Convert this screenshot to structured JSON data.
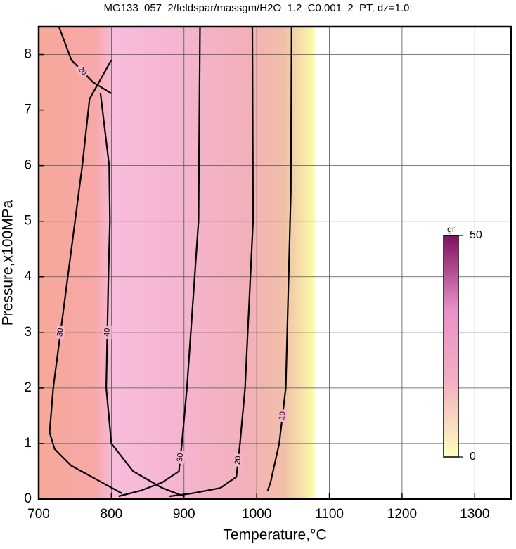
{
  "chart_data": {
    "type": "contour",
    "title": "MG133_057_2/feldspar/massgm/H2O_1.2_C0.001_2_PT, dz=1.0:",
    "x_label": "Temperature,°C",
    "y_label": "Pressure,x100MPa",
    "xlim": [
      700,
      1350
    ],
    "ylim": [
      0,
      8.5
    ],
    "xticks": [
      700,
      800,
      900,
      1000,
      1100,
      1200,
      1300
    ],
    "yticks": [
      0,
      1,
      2,
      3,
      4,
      5,
      6,
      7,
      8
    ],
    "grid": true,
    "contours": [
      {
        "level": 10,
        "x": [
          1048,
          1047,
          1040,
          1031,
          1019,
          1015
        ],
        "y": [
          8.5,
          5.5,
          2,
          1,
          0.3,
          0.15
        ]
      },
      {
        "level": 20,
        "x": [
          994,
          995,
          984,
          977,
          972,
          950,
          910,
          880
        ],
        "y": [
          8.5,
          5,
          2,
          1,
          0.4,
          0.2,
          0.1,
          0.05
        ]
      },
      {
        "level": 30,
        "x": [
          922,
          920,
          904,
          897,
          893,
          870,
          840,
          810
        ],
        "y": [
          8.5,
          5,
          2,
          1,
          0.5,
          0.3,
          0.15,
          0.05
        ]
      },
      {
        "level": 40,
        "x": [
          785,
          797,
          798,
          796,
          793,
          800,
          830,
          870,
          900
        ],
        "y": [
          7.3,
          6,
          5,
          4,
          2,
          1,
          0.5,
          0.2,
          0.05
        ]
      },
      {
        "level": 30,
        "x": [
          800,
          770,
          760,
          740,
          720,
          715,
          722,
          745,
          780,
          815
        ],
        "y": [
          7.9,
          7.2,
          6,
          4,
          2,
          1.2,
          0.9,
          0.6,
          0.35,
          0.1
        ]
      },
      {
        "level": 20,
        "x": [
          728,
          745,
          775,
          800
        ],
        "y": [
          8.5,
          7.9,
          7.5,
          7.3
        ]
      }
    ],
    "colorbar": {
      "label": "gr",
      "lim": [
        0,
        50
      ],
      "ticks": [
        0,
        50
      ],
      "colors": [
        "#ffffc0",
        "#f4b0c0",
        "#e890c8",
        "#801060"
      ]
    }
  }
}
